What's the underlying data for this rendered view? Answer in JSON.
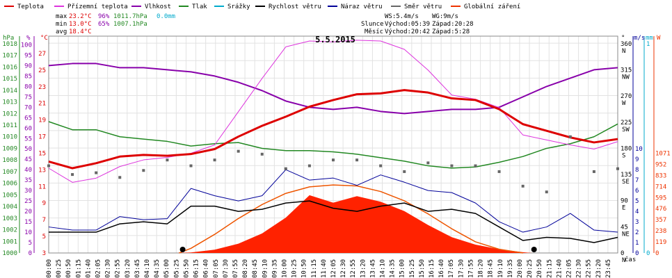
{
  "chart_data": {
    "type": "line",
    "title": "5.5.2015",
    "legend": [
      {
        "name": "Teplota",
        "color": "#dd0000"
      },
      {
        "name": "Přízemní teplota",
        "color": "#dd33dd"
      },
      {
        "name": "Vlhkost",
        "color": "#8800aa"
      },
      {
        "name": "Tlak",
        "color": "#228822"
      },
      {
        "name": "Srážky",
        "color": "#00aacc"
      },
      {
        "name": "Rychlost větru",
        "color": "#000000"
      },
      {
        "name": "Náraz větru",
        "color": "#000099"
      },
      {
        "name": "Směr větru",
        "color": "#666666"
      },
      {
        "name": "Globální záření",
        "color": "#ee3300"
      }
    ],
    "stats": {
      "max_label": "max",
      "max_temp": "23.2°C",
      "max_hum": "96%",
      "max_press": "1011.7hPa",
      "max_rain": "0.0mm",
      "min_label": "min",
      "min_temp": "13.0°C",
      "min_hum": "65%",
      "min_press": "1007.1hPa",
      "avg_label": "avg",
      "avg_temp": "18.4°C",
      "ws": "WS:5.4m/s",
      "wg": "WG:9m/s",
      "sun_label": "Slunce",
      "sun_rise": "Východ:05:39",
      "sun_set": "Západ:20:28",
      "moon_label": "Měsíc",
      "moon_rise": "Východ:20:42",
      "moon_set": "Západ:5:28"
    },
    "axis_units": {
      "hpa": "hPa",
      "pct": "%",
      "degc": "°C",
      "deg": "°",
      "ms": "m/s",
      "mm": "mm",
      "w": "W",
      "time": "čas"
    },
    "axes": {
      "hpa": [
        "1000",
        "1001",
        "1002",
        "1003",
        "1004",
        "1005",
        "1006",
        "1007",
        "1008",
        "1009",
        "1010",
        "1011",
        "1012",
        "1013",
        "1014",
        "1015",
        "1016",
        "1017",
        "1018"
      ],
      "pct": [
        "0",
        "5",
        "10",
        "15",
        "20",
        "25",
        "30",
        "35",
        "40",
        "45",
        "50",
        "55",
        "60",
        "65",
        "70",
        "75",
        "80",
        "85",
        "90",
        "95",
        "100"
      ],
      "degc": [
        "3",
        "5",
        "7",
        "9",
        "11",
        "13",
        "15",
        "17",
        "19",
        "21",
        "23",
        "25",
        "27"
      ],
      "deg": [
        "0",
        "45",
        "90",
        "135",
        "180",
        "225",
        "270",
        "315",
        "360"
      ],
      "deg_dir": [
        "N",
        "NE",
        "E",
        "SE",
        "S",
        "SW",
        "W",
        "NW",
        "N"
      ],
      "ms": [
        "0",
        "1",
        "2",
        "3",
        "4",
        "5",
        "6",
        "7",
        "8",
        "9",
        "10"
      ],
      "mm": [
        "0",
        "1"
      ],
      "w": [
        "0",
        "119",
        "238",
        "357",
        "476",
        "595",
        "714",
        "833",
        "952",
        "1071"
      ]
    },
    "x_ticks": [
      "00:00",
      "00:25",
      "00:50",
      "01:15",
      "01:40",
      "02:05",
      "02:30",
      "02:55",
      "03:20",
      "03:45",
      "04:10",
      "04:35",
      "05:00",
      "05:25",
      "05:50",
      "06:15",
      "06:40",
      "07:05",
      "07:30",
      "07:55",
      "08:20",
      "08:45",
      "09:10",
      "09:35",
      "10:00",
      "10:25",
      "10:50",
      "11:15",
      "11:40",
      "12:05",
      "12:30",
      "12:55",
      "13:20",
      "13:45",
      "14:10",
      "14:35",
      "15:00",
      "15:25",
      "15:50",
      "16:15",
      "16:40",
      "17:05",
      "17:30",
      "17:55",
      "18:20",
      "18:45",
      "19:10",
      "19:35",
      "20:00",
      "20:25",
      "20:50",
      "21:15",
      "21:40",
      "22:05",
      "22:30",
      "22:55",
      "23:20",
      "23:45"
    ],
    "series": {
      "teplota_c": [
        [
          0,
          14.0
        ],
        [
          1,
          13.2
        ],
        [
          2,
          13.8
        ],
        [
          3,
          14.6
        ],
        [
          4,
          14.8
        ],
        [
          5,
          14.7
        ],
        [
          6,
          14.9
        ],
        [
          7,
          15.5
        ],
        [
          8,
          17.0
        ],
        [
          9,
          18.3
        ],
        [
          10,
          19.4
        ],
        [
          11,
          20.6
        ],
        [
          12,
          21.4
        ],
        [
          13,
          22.1
        ],
        [
          14,
          22.2
        ],
        [
          15,
          22.6
        ],
        [
          16,
          22.3
        ],
        [
          17,
          21.6
        ],
        [
          18,
          21.4
        ],
        [
          19,
          20.3
        ],
        [
          20,
          18.5
        ],
        [
          21,
          17.7
        ],
        [
          22,
          16.9
        ],
        [
          23,
          16.3
        ],
        [
          24,
          16.7
        ]
      ],
      "prizemni_c": [
        [
          0,
          13.2
        ],
        [
          1,
          11.5
        ],
        [
          2,
          12.0
        ],
        [
          3,
          13.4
        ],
        [
          4,
          14.2
        ],
        [
          5,
          14.5
        ],
        [
          6,
          15.0
        ],
        [
          7,
          16.0
        ],
        [
          8,
          20.0
        ],
        [
          9,
          24.0
        ],
        [
          10,
          27.8
        ],
        [
          11,
          28.5
        ],
        [
          12,
          28.4
        ],
        [
          13,
          28.6
        ],
        [
          14,
          28.5
        ],
        [
          15,
          27.5
        ],
        [
          16,
          25.0
        ],
        [
          17,
          22.0
        ],
        [
          18,
          21.5
        ],
        [
          19,
          20.5
        ],
        [
          20,
          17.2
        ],
        [
          21,
          16.6
        ],
        [
          22,
          16.0
        ],
        [
          23,
          15.5
        ],
        [
          24,
          16.4
        ]
      ],
      "vlhkost_pct": [
        [
          0,
          90
        ],
        [
          1,
          91
        ],
        [
          2,
          91
        ],
        [
          3,
          89
        ],
        [
          4,
          89
        ],
        [
          5,
          88
        ],
        [
          6,
          87
        ],
        [
          7,
          85
        ],
        [
          8,
          82
        ],
        [
          9,
          78
        ],
        [
          10,
          73
        ],
        [
          11,
          70
        ],
        [
          12,
          69
        ],
        [
          13,
          70
        ],
        [
          14,
          68
        ],
        [
          15,
          67
        ],
        [
          16,
          68
        ],
        [
          17,
          69
        ],
        [
          18,
          69
        ],
        [
          19,
          70
        ],
        [
          20,
          75
        ],
        [
          21,
          80
        ],
        [
          22,
          84
        ],
        [
          23,
          88
        ],
        [
          24,
          89
        ]
      ],
      "tlak_hpa": [
        [
          0,
          1011.3
        ],
        [
          1,
          1010.6
        ],
        [
          2,
          1010.6
        ],
        [
          3,
          1010.0
        ],
        [
          4,
          1009.8
        ],
        [
          5,
          1009.6
        ],
        [
          6,
          1009.2
        ],
        [
          7,
          1009.4
        ],
        [
          8,
          1009.5
        ],
        [
          9,
          1009.0
        ],
        [
          10,
          1008.8
        ],
        [
          11,
          1008.8
        ],
        [
          12,
          1008.7
        ],
        [
          13,
          1008.5
        ],
        [
          14,
          1008.2
        ],
        [
          15,
          1007.9
        ],
        [
          16,
          1007.5
        ],
        [
          17,
          1007.3
        ],
        [
          18,
          1007.4
        ],
        [
          19,
          1007.8
        ],
        [
          20,
          1008.3
        ],
        [
          21,
          1009.0
        ],
        [
          22,
          1009.4
        ],
        [
          23,
          1010.0
        ],
        [
          24,
          1011.1
        ]
      ],
      "rychlost_ms": [
        [
          0,
          2
        ],
        [
          1,
          2
        ],
        [
          2,
          2
        ],
        [
          3,
          2.8
        ],
        [
          4,
          3
        ],
        [
          5,
          2.8
        ],
        [
          6,
          4.5
        ],
        [
          7,
          4.5
        ],
        [
          8,
          4.0
        ],
        [
          9,
          4.2
        ],
        [
          10,
          4.8
        ],
        [
          11,
          5.0
        ],
        [
          12,
          4.3
        ],
        [
          13,
          4.0
        ],
        [
          14,
          4.5
        ],
        [
          15,
          4.8
        ],
        [
          16,
          4.0
        ],
        [
          17,
          4.2
        ],
        [
          18,
          3.8
        ],
        [
          19,
          2.5
        ],
        [
          20,
          1.2
        ],
        [
          21,
          1.5
        ],
        [
          22,
          1.4
        ],
        [
          23,
          1.0
        ],
        [
          24,
          1.5
        ]
      ],
      "naraz_ms": [
        [
          0,
          2.5
        ],
        [
          1,
          2.2
        ],
        [
          2,
          2.2
        ],
        [
          3,
          3.5
        ],
        [
          4,
          3.2
        ],
        [
          5,
          3.3
        ],
        [
          6,
          6.2
        ],
        [
          7,
          5.5
        ],
        [
          8,
          5.0
        ],
        [
          9,
          5.5
        ],
        [
          10,
          8.0
        ],
        [
          11,
          7.0
        ],
        [
          12,
          7.2
        ],
        [
          13,
          6.5
        ],
        [
          14,
          7.5
        ],
        [
          15,
          6.8
        ],
        [
          16,
          6.0
        ],
        [
          17,
          5.8
        ],
        [
          18,
          4.8
        ],
        [
          19,
          3.0
        ],
        [
          20,
          2.0
        ],
        [
          21,
          2.5
        ],
        [
          22,
          3.8
        ],
        [
          23,
          2.2
        ],
        [
          24,
          2.0
        ]
      ],
      "smer_deg": [
        [
          0,
          150
        ],
        [
          1,
          135
        ],
        [
          2,
          138
        ],
        [
          3,
          130
        ],
        [
          4,
          142
        ],
        [
          5,
          160
        ],
        [
          6,
          150
        ],
        [
          7,
          160
        ],
        [
          8,
          175
        ],
        [
          9,
          170
        ],
        [
          10,
          145
        ],
        [
          11,
          150
        ],
        [
          12,
          160
        ],
        [
          13,
          160
        ],
        [
          14,
          150
        ],
        [
          15,
          140
        ],
        [
          16,
          155
        ],
        [
          17,
          150
        ],
        [
          18,
          150
        ],
        [
          19,
          140
        ],
        [
          20,
          115
        ],
        [
          21,
          105
        ],
        [
          22,
          200
        ],
        [
          23,
          140
        ],
        [
          24,
          145
        ]
      ],
      "zareni_w": [
        [
          0,
          0
        ],
        [
          5.4,
          0
        ],
        [
          6,
          6
        ],
        [
          7,
          35
        ],
        [
          8,
          100
        ],
        [
          9,
          210
        ],
        [
          10,
          380
        ],
        [
          11,
          620
        ],
        [
          12,
          540
        ],
        [
          13,
          610
        ],
        [
          14,
          550
        ],
        [
          15,
          450
        ],
        [
          16,
          300
        ],
        [
          17,
          170
        ],
        [
          18,
          90
        ],
        [
          19,
          40
        ],
        [
          20,
          8
        ],
        [
          20.4,
          0
        ],
        [
          24,
          0
        ]
      ],
      "zareni_teor_w": [
        [
          5.5,
          0
        ],
        [
          6,
          50
        ],
        [
          7,
          200
        ],
        [
          8,
          370
        ],
        [
          9,
          520
        ],
        [
          10,
          640
        ],
        [
          11,
          710
        ],
        [
          12,
          730
        ],
        [
          13,
          720
        ],
        [
          14,
          660
        ],
        [
          15,
          560
        ],
        [
          16,
          420
        ],
        [
          17,
          260
        ],
        [
          18,
          120
        ],
        [
          19,
          40
        ],
        [
          20,
          0
        ]
      ]
    }
  }
}
